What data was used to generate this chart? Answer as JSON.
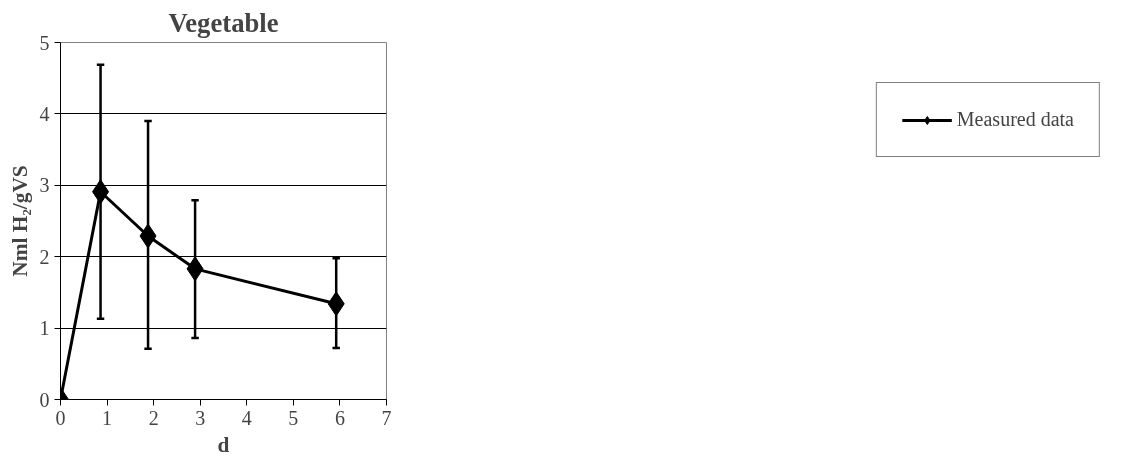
{
  "chart_data": {
    "type": "line",
    "title": "Vegetable",
    "xlabel": "d",
    "ylabel": "Nml H₂/gVS",
    "x": [
      0,
      0.86,
      1.88,
      2.89,
      5.92
    ],
    "series": [
      {
        "name": "Measured data",
        "color": "#000000",
        "values": [
          0,
          2.91,
          2.29,
          1.83,
          1.34
        ],
        "errors": [
          null,
          [
            1.13,
            4.69
          ],
          [
            0.71,
            3.9
          ],
          [
            0.86,
            2.79
          ],
          [
            0.72,
            1.98
          ]
        ]
      }
    ],
    "xlim": [
      0,
      7
    ],
    "xticks": [
      0,
      1,
      2,
      3,
      4,
      5,
      6,
      7
    ],
    "ylim": [
      0,
      5
    ],
    "yticks": [
      0,
      1,
      2,
      3,
      4,
      5
    ],
    "grid": "y",
    "legend": "right",
    "marker": "diamond",
    "line_style": "solid"
  }
}
